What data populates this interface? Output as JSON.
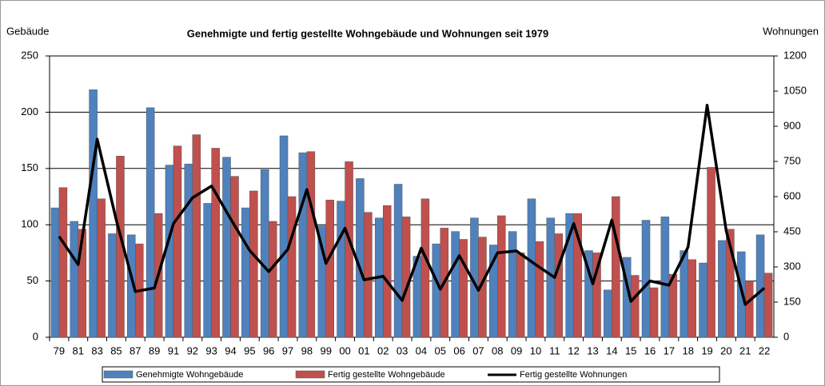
{
  "chart_data": {
    "type": "bar",
    "title": "Genehmigte und fertig gestellte Wohngebäude und Wohnungen seit 1979",
    "y_label": "Gebäude",
    "y2_label": "Wohnungen",
    "categories": [
      "79",
      "81",
      "83",
      "85",
      "87",
      "89",
      "91",
      "92",
      "93",
      "94",
      "95",
      "96",
      "97",
      "98",
      "99",
      "00",
      "01",
      "02",
      "03",
      "04",
      "05",
      "06",
      "07",
      "08",
      "09",
      "10",
      "11",
      "12",
      "13",
      "14",
      "15",
      "16",
      "17",
      "18",
      "19",
      "20",
      "21",
      "22"
    ],
    "series": [
      {
        "name": "Genehmigte Wohngebäude",
        "color": "#4f81bd",
        "values": [
          115,
          103,
          220,
          92,
          91,
          204,
          153,
          154,
          119,
          160,
          115,
          149,
          179,
          164,
          99,
          121,
          141,
          106,
          136,
          72,
          83,
          94,
          106,
          82,
          94,
          123,
          106,
          110,
          77,
          42,
          71,
          104,
          107,
          77,
          66,
          86,
          76,
          91
        ]
      },
      {
        "name": "Fertig gestellte Wohngebäude",
        "color": "#c0504d",
        "values": [
          133,
          96,
          123,
          161,
          83,
          110,
          170,
          180,
          168,
          143,
          130,
          103,
          125,
          165,
          122,
          156,
          111,
          117,
          107,
          123,
          97,
          87,
          89,
          108,
          75,
          85,
          92,
          110,
          75,
          125,
          55,
          44,
          56,
          69,
          151,
          96,
          50,
          57
        ]
      },
      {
        "name": "Fertig gestellte Wohnungen",
        "color": "#000000",
        "type": "line",
        "axis": "y2",
        "values": [
          430,
          310,
          845,
          500,
          195,
          210,
          485,
          595,
          645,
          505,
          370,
          280,
          375,
          630,
          315,
          465,
          245,
          260,
          157,
          380,
          205,
          348,
          200,
          360,
          368,
          310,
          255,
          485,
          228,
          500,
          153,
          240,
          222,
          385,
          990,
          455,
          140,
          210
        ]
      }
    ],
    "ylim": [
      0,
      250
    ],
    "yticks": [
      0,
      50,
      100,
      150,
      200,
      250
    ],
    "y2lim": [
      0,
      1200
    ],
    "y2ticks": [
      0,
      150,
      300,
      450,
      600,
      750,
      900,
      1050,
      1200
    ],
    "grid": true,
    "legend": "bottom"
  }
}
